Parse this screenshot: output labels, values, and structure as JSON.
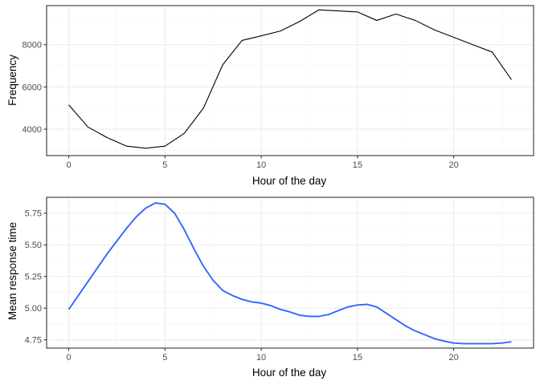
{
  "chart_data": [
    {
      "type": "line",
      "xlabel": "Hour of the day",
      "ylabel": "Frequency",
      "xlim": [
        -1.15,
        24.15
      ],
      "ylim": [
        2750,
        9850
      ],
      "x_ticks": [
        0,
        5,
        10,
        15,
        20
      ],
      "x_tick_labels": [
        "0",
        "5",
        "10",
        "15",
        "20"
      ],
      "y_ticks": [
        4000,
        6000,
        8000
      ],
      "y_tick_labels": [
        "4000",
        "6000",
        "8000"
      ],
      "grid": true,
      "line_color": "#000000",
      "series": [
        {
          "x": [
            0,
            1,
            2,
            3,
            4,
            5,
            6,
            7,
            8,
            9,
            10,
            11,
            12,
            13,
            14,
            15,
            16,
            17,
            18,
            19,
            20,
            21,
            22,
            23
          ],
          "y": [
            5150,
            4100,
            3600,
            3200,
            3100,
            3200,
            3800,
            5000,
            7050,
            8200,
            8420,
            8650,
            9100,
            9650,
            9600,
            9550,
            9150,
            9450,
            9150,
            8700,
            8350,
            8000,
            7650,
            6350
          ]
        }
      ]
    },
    {
      "type": "line",
      "xlabel": "Hour of the day",
      "ylabel": "Mean response time",
      "xlim": [
        -1.15,
        24.15
      ],
      "ylim": [
        4.685,
        5.875
      ],
      "x_ticks": [
        0,
        5,
        10,
        15,
        20
      ],
      "x_tick_labels": [
        "0",
        "5",
        "10",
        "15",
        "20"
      ],
      "y_ticks": [
        4.75,
        5.0,
        5.25,
        5.5,
        5.75
      ],
      "y_tick_labels": [
        "4.75",
        "5.00",
        "5.25",
        "5.50",
        "5.75"
      ],
      "grid": true,
      "line_color": "#3366ff",
      "series": [
        {
          "x": [
            0,
            0.5,
            1,
            1.5,
            2,
            2.5,
            3,
            3.5,
            4,
            4.5,
            5,
            5.5,
            6,
            6.5,
            7,
            7.5,
            8,
            8.5,
            9,
            9.5,
            10,
            10.5,
            11,
            11.5,
            12,
            12.5,
            13,
            13.5,
            14,
            14.5,
            15,
            15.5,
            16,
            16.5,
            17,
            17.5,
            18,
            18.5,
            19,
            19.5,
            20,
            20.5,
            21,
            21.5,
            22,
            22.5,
            23
          ],
          "y": [
            4.99,
            5.1,
            5.21,
            5.32,
            5.43,
            5.53,
            5.63,
            5.72,
            5.79,
            5.83,
            5.82,
            5.75,
            5.62,
            5.47,
            5.33,
            5.22,
            5.14,
            5.1,
            5.07,
            5.05,
            5.04,
            5.02,
            4.99,
            4.97,
            4.945,
            4.935,
            4.935,
            4.95,
            4.98,
            5.01,
            5.025,
            5.03,
            5.01,
            4.96,
            4.91,
            4.86,
            4.82,
            4.79,
            4.76,
            4.74,
            4.725,
            4.72,
            4.72,
            4.72,
            4.72,
            4.725,
            4.735
          ]
        }
      ]
    }
  ]
}
